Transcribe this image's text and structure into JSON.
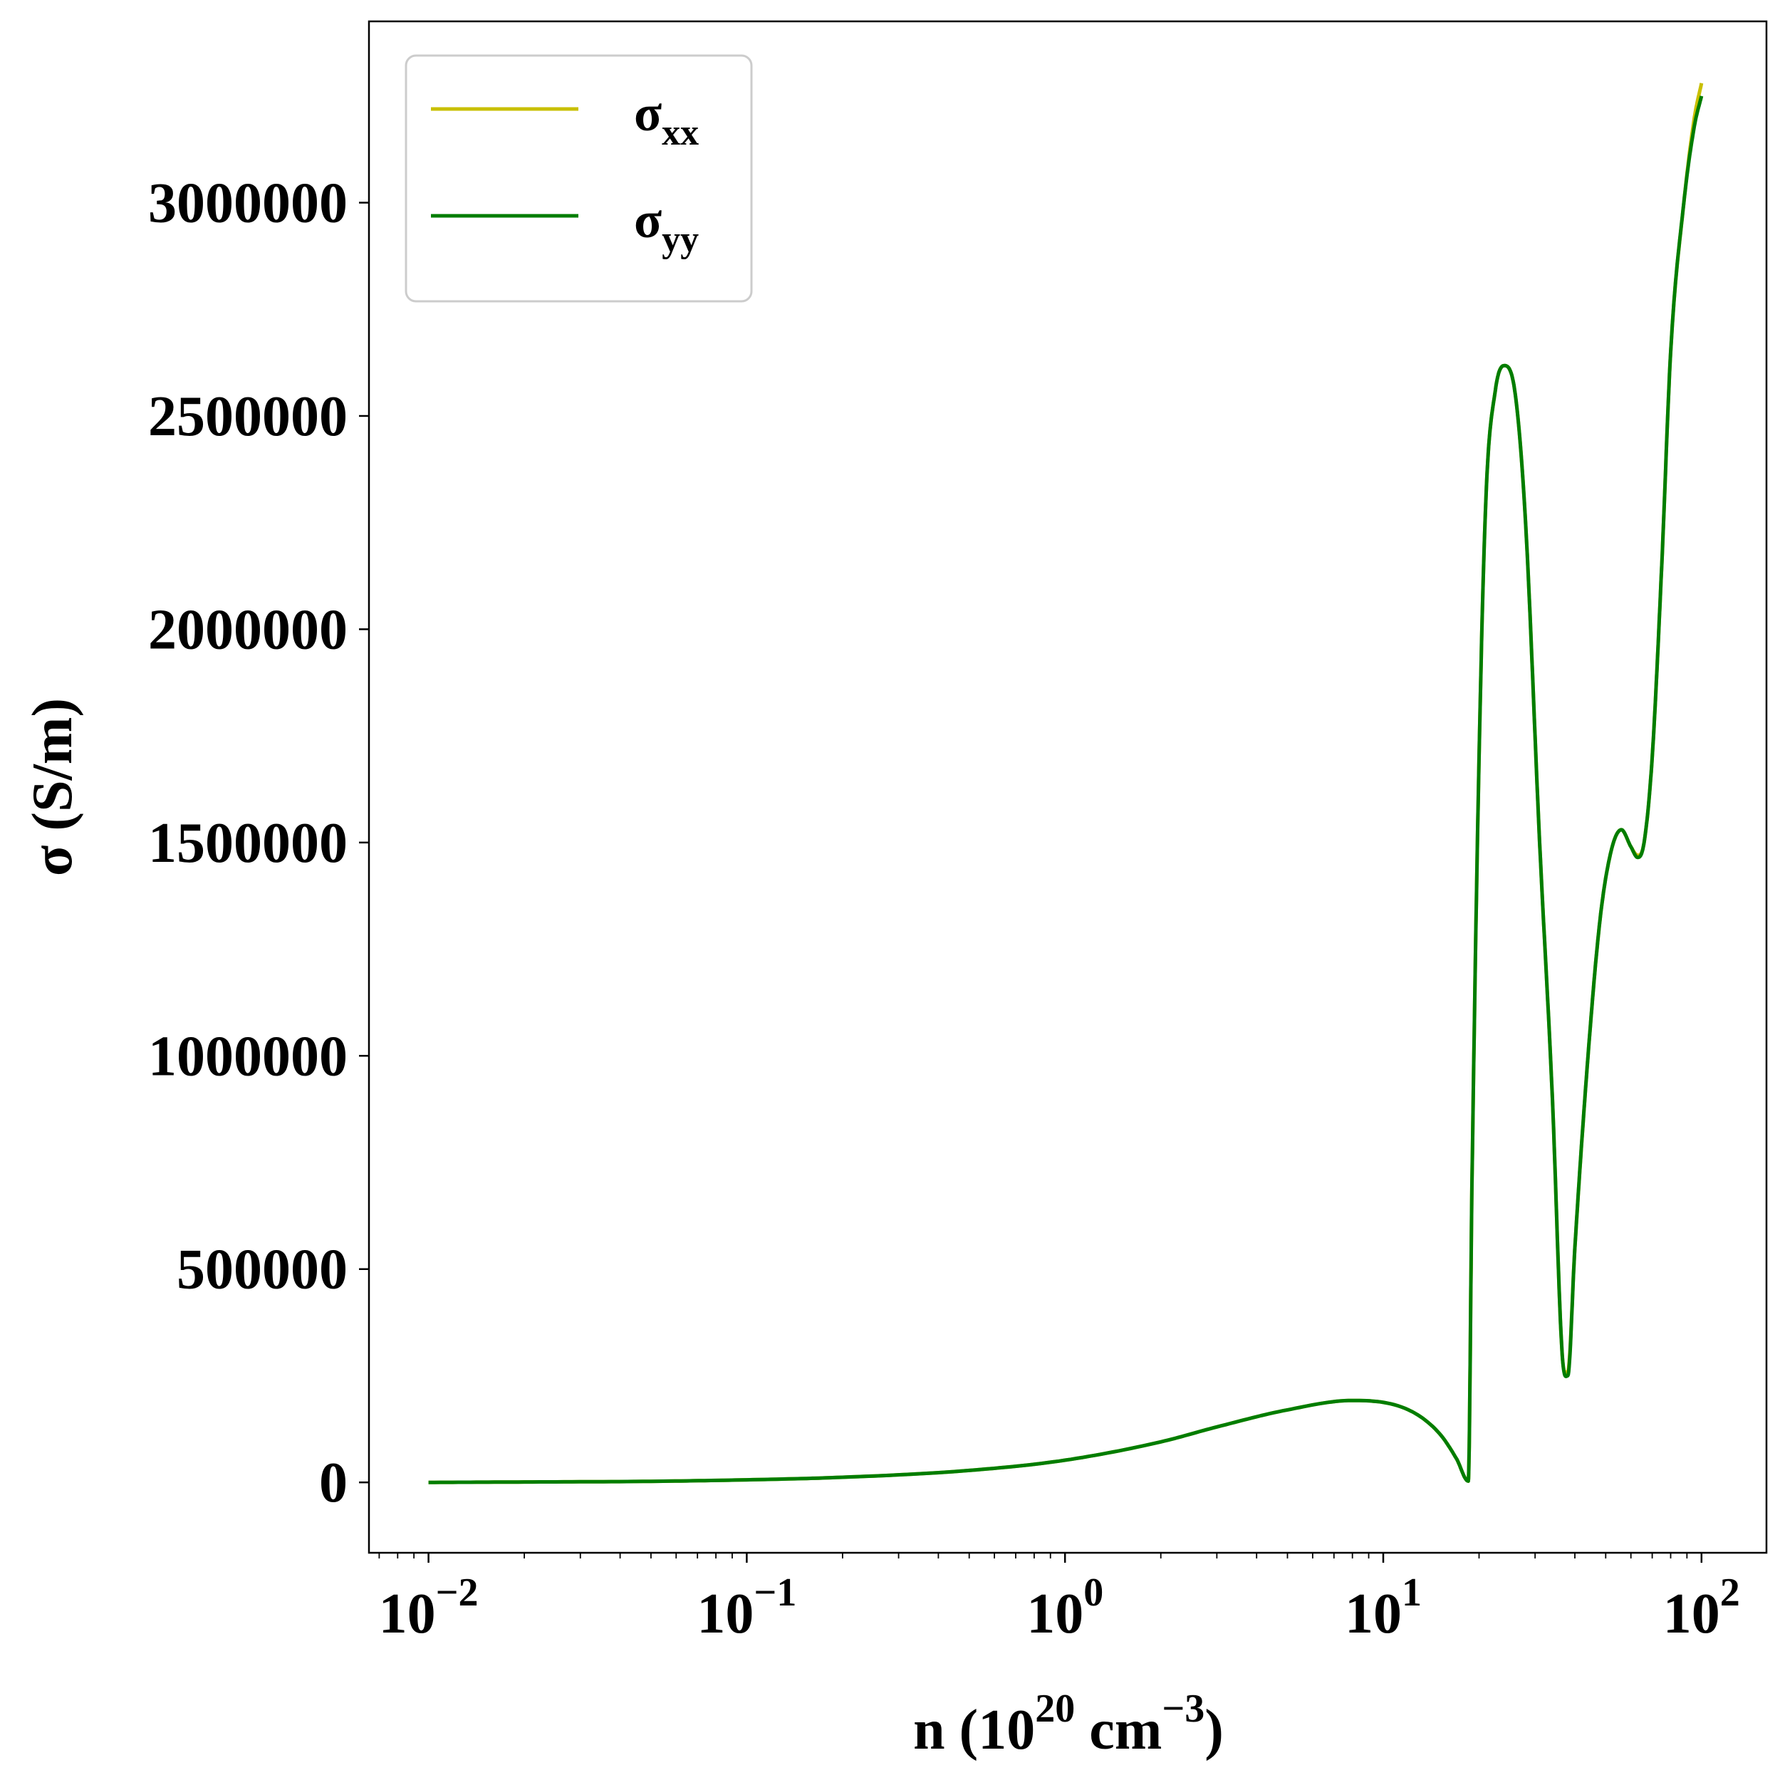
{
  "chart_data": {
    "type": "line",
    "xscale": "log",
    "xlim": [
      0.0065,
      160
    ],
    "ylim": [
      -165000,
      3425000
    ],
    "xlabel": "n (10^20 cm^-3)",
    "xlabel_parts": {
      "main": "n (10",
      "exp1": "20",
      "unit": " cm",
      "exp2": "−3",
      "close": ")"
    },
    "ylabel": "σ (S/m)",
    "yticks": [
      0,
      500000,
      1000000,
      1500000,
      2000000,
      2500000,
      3000000
    ],
    "ytick_labels": [
      "0",
      "500000",
      "1000000",
      "1500000",
      "2000000",
      "2500000",
      "3000000"
    ],
    "xticks": [
      0.01,
      0.1,
      1,
      10,
      100
    ],
    "xtick_labels": [
      {
        "base": "10",
        "exp": "−2"
      },
      {
        "base": "10",
        "exp": "−1"
      },
      {
        "base": "10",
        "exp": "0"
      },
      {
        "base": "10",
        "exp": "1"
      },
      {
        "base": "10",
        "exp": "2"
      }
    ],
    "legend_position": "top-left",
    "grid": false,
    "series": [
      {
        "name": "σxx",
        "label_main": "σ",
        "label_sub": "xx",
        "color": "#c8bf00",
        "points": [
          [
            0.01,
            0
          ],
          [
            0.02,
            900
          ],
          [
            0.05,
            2500
          ],
          [
            0.1,
            6000
          ],
          [
            0.2,
            12000
          ],
          [
            0.5,
            28000
          ],
          [
            1,
            52000
          ],
          [
            2,
            95000
          ],
          [
            3,
            130000
          ],
          [
            5,
            170000
          ],
          [
            8,
            192000
          ],
          [
            12,
            170000
          ],
          [
            15,
            115000
          ],
          [
            17,
            55000
          ],
          [
            18.5,
            3000
          ],
          [
            19,
            700000
          ],
          [
            20,
            1700000
          ],
          [
            21,
            2300000
          ],
          [
            22.5,
            2560000
          ],
          [
            24,
            2618000
          ],
          [
            26,
            2550000
          ],
          [
            28,
            2250000
          ],
          [
            31,
            1500000
          ],
          [
            34,
            900000
          ],
          [
            36.5,
            300000
          ],
          [
            38,
            260000
          ],
          [
            40,
            550000
          ],
          [
            44,
            1000000
          ],
          [
            48,
            1320000
          ],
          [
            52,
            1480000
          ],
          [
            56,
            1530000
          ],
          [
            60,
            1490000
          ],
          [
            63,
            1470000
          ],
          [
            66,
            1500000
          ],
          [
            70,
            1700000
          ],
          [
            75,
            2150000
          ],
          [
            80,
            2650000
          ],
          [
            88,
            3000000
          ],
          [
            95,
            3200000
          ],
          [
            100,
            3280000
          ]
        ]
      },
      {
        "name": "σyy",
        "label_main": "σ",
        "label_sub": "yy",
        "color": "#007d00",
        "points": [
          [
            0.01,
            0
          ],
          [
            0.02,
            900
          ],
          [
            0.05,
            2500
          ],
          [
            0.1,
            6000
          ],
          [
            0.2,
            12000
          ],
          [
            0.5,
            28000
          ],
          [
            1,
            52000
          ],
          [
            2,
            95000
          ],
          [
            3,
            130000
          ],
          [
            5,
            170000
          ],
          [
            8,
            192000
          ],
          [
            12,
            170000
          ],
          [
            15,
            115000
          ],
          [
            17,
            55000
          ],
          [
            18.5,
            3000
          ],
          [
            19,
            700000
          ],
          [
            20,
            1700000
          ],
          [
            21,
            2300000
          ],
          [
            22.5,
            2560000
          ],
          [
            24,
            2618000
          ],
          [
            26,
            2550000
          ],
          [
            28,
            2250000
          ],
          [
            31,
            1500000
          ],
          [
            34,
            900000
          ],
          [
            36.5,
            300000
          ],
          [
            38,
            250000
          ],
          [
            40,
            550000
          ],
          [
            44,
            1000000
          ],
          [
            48,
            1320000
          ],
          [
            52,
            1480000
          ],
          [
            56,
            1530000
          ],
          [
            60,
            1490000
          ],
          [
            63,
            1465000
          ],
          [
            66,
            1500000
          ],
          [
            70,
            1700000
          ],
          [
            75,
            2150000
          ],
          [
            80,
            2650000
          ],
          [
            88,
            3000000
          ],
          [
            95,
            3180000
          ],
          [
            100,
            3250000
          ]
        ]
      }
    ]
  }
}
